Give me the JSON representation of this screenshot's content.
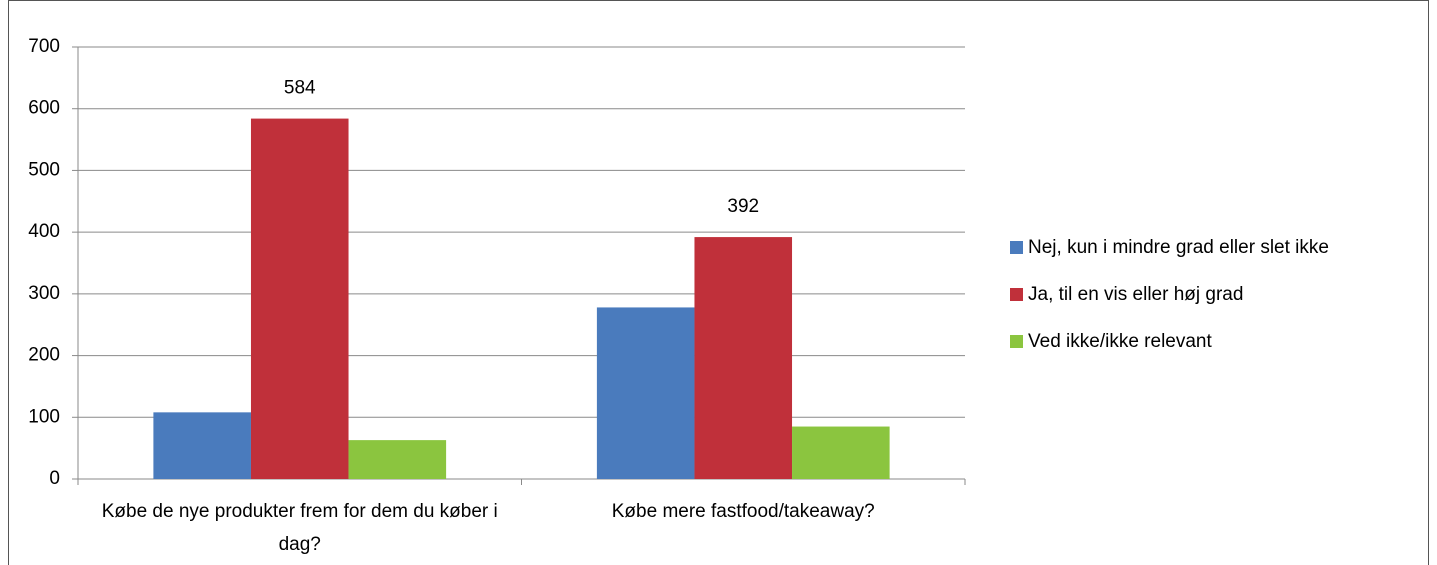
{
  "chart_data": {
    "type": "bar",
    "categories": [
      "Købe de nye produkter frem for dem du køber i dag?",
      "Købe mere fastfood/takeaway?"
    ],
    "series": [
      {
        "name": "Nej, kun i mindre grad eller slet ikke",
        "color": "#4a7bbd",
        "values": [
          108,
          278
        ]
      },
      {
        "name": "Ja, til en vis eller høj grad",
        "color": "#c0303a",
        "values": [
          584,
          392
        ],
        "data_labels": true
      },
      {
        "name": "Ved ikke/ikke relevant",
        "color": "#8bc53f",
        "values": [
          63,
          85
        ]
      }
    ],
    "ylim": [
      0,
      700
    ],
    "yticks": [
      0,
      100,
      200,
      300,
      400,
      500,
      600,
      700
    ],
    "grid": true,
    "legend": "right"
  }
}
